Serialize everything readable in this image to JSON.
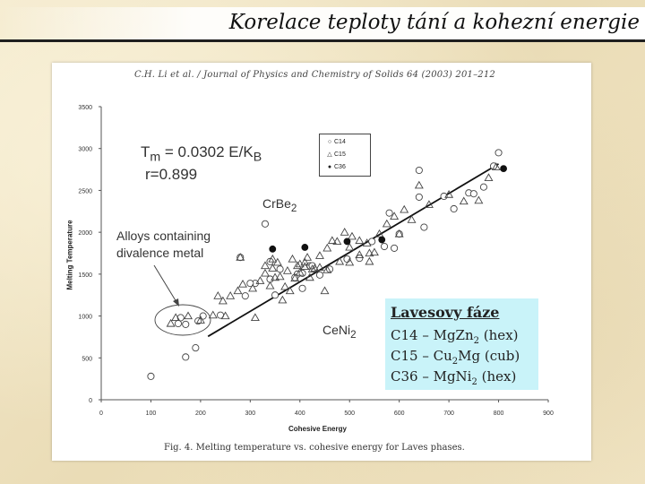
{
  "slide": {
    "title": "Korelace teploty tání a kohezní energie"
  },
  "figure": {
    "header": "C.H. Li et al. / Journal of Physics and Chemistry of Solids 64 (2003) 201–212",
    "caption": "Fig. 4. Melting temperature vs. cohesive energy for Laves phases.",
    "formula_line1": "T",
    "formula_sub": "m",
    "formula_rest": " = 0.0302 E/K",
    "formula_sub2": "B",
    "formula_line2": "r=0.899",
    "annotation_crbe2": "CrBe",
    "annotation_crbe2_sub": "2",
    "annotation_ceni2": "CeNi",
    "annotation_ceni2_sub": "2",
    "annotation_alloys_line1": "Alloys containing",
    "annotation_alloys_line2": "divalence metal",
    "legend": [
      {
        "label": "C14",
        "symbol": "○"
      },
      {
        "label": "C15",
        "symbol": "△"
      },
      {
        "label": "C36",
        "symbol": "●"
      }
    ]
  },
  "laves_box": {
    "heading": "Lavesovy fáze",
    "rows": [
      {
        "prefix": "C14 – MgZn",
        "sub": "2",
        "suffix": " (hex)"
      },
      {
        "prefix": "C15 – Cu",
        "sub": "2",
        "suffix": "Mg (cub)"
      },
      {
        "prefix": "C36 – MgNi",
        "sub": "2",
        "suffix": " (hex)"
      }
    ]
  },
  "chart_data": {
    "type": "scatter",
    "xlabel": "Cohesive Energy",
    "ylabel": "Melting Temperature",
    "xlim": [
      0,
      900
    ],
    "ylim": [
      0,
      3500
    ],
    "xticks": [
      0,
      100,
      200,
      300,
      400,
      500,
      600,
      700,
      800,
      900
    ],
    "yticks": [
      0,
      500,
      1000,
      1500,
      2000,
      2500,
      3000,
      3500
    ],
    "fit_line": {
      "slope": 3.52,
      "intercept": 0,
      "x_range": [
        215,
        800
      ]
    },
    "series": [
      {
        "name": "C14",
        "marker": "open-circle",
        "points": [
          [
            100,
            280
          ],
          [
            170,
            510
          ],
          [
            190,
            620
          ],
          [
            170,
            900
          ],
          [
            160,
            980
          ],
          [
            195,
            940
          ],
          [
            205,
            1000
          ],
          [
            240,
            1010
          ],
          [
            290,
            1240
          ],
          [
            310,
            1390
          ],
          [
            340,
            1440
          ],
          [
            360,
            1560
          ],
          [
            395,
            1500
          ],
          [
            405,
            1510
          ],
          [
            420,
            1600
          ],
          [
            440,
            1490
          ],
          [
            460,
            1560
          ],
          [
            495,
            1680
          ],
          [
            520,
            1690
          ],
          [
            570,
            1830
          ],
          [
            590,
            1810
          ],
          [
            600,
            1980
          ],
          [
            650,
            2060
          ],
          [
            690,
            2430
          ],
          [
            740,
            2470
          ],
          [
            790,
            2790
          ],
          [
            770,
            2540
          ],
          [
            710,
            2280
          ],
          [
            640,
            2420
          ],
          [
            580,
            2230
          ],
          [
            330,
            2100
          ],
          [
            300,
            1390
          ],
          [
            350,
            1250
          ],
          [
            405,
            1330
          ],
          [
            425,
            1600
          ],
          [
            390,
            1460
          ],
          [
            340,
            1650
          ],
          [
            640,
            2740
          ],
          [
            750,
            2460
          ],
          [
            800,
            2950
          ],
          [
            545,
            1890
          ],
          [
            280,
            1700
          ],
          [
            155,
            910
          ]
        ]
      },
      {
        "name": "C15",
        "marker": "open-triangle",
        "points": [
          [
            140,
            910
          ],
          [
            150,
            980
          ],
          [
            175,
            1000
          ],
          [
            225,
            1010
          ],
          [
            245,
            1180
          ],
          [
            260,
            1240
          ],
          [
            275,
            1300
          ],
          [
            285,
            1380
          ],
          [
            305,
            1330
          ],
          [
            320,
            1420
          ],
          [
            330,
            1510
          ],
          [
            345,
            1570
          ],
          [
            355,
            1640
          ],
          [
            360,
            1470
          ],
          [
            370,
            1350
          ],
          [
            375,
            1540
          ],
          [
            385,
            1680
          ],
          [
            395,
            1600
          ],
          [
            400,
            1520
          ],
          [
            410,
            1640
          ],
          [
            415,
            1700
          ],
          [
            430,
            1570
          ],
          [
            440,
            1720
          ],
          [
            455,
            1810
          ],
          [
            465,
            1900
          ],
          [
            475,
            1890
          ],
          [
            490,
            2000
          ],
          [
            505,
            1950
          ],
          [
            520,
            1900
          ],
          [
            535,
            1870
          ],
          [
            540,
            1750
          ],
          [
            560,
            1980
          ],
          [
            575,
            2100
          ],
          [
            590,
            2190
          ],
          [
            610,
            2270
          ],
          [
            625,
            2150
          ],
          [
            640,
            2560
          ],
          [
            660,
            2330
          ],
          [
            700,
            2450
          ],
          [
            730,
            2370
          ],
          [
            760,
            2380
          ],
          [
            780,
            2650
          ],
          [
            795,
            2780
          ],
          [
            410,
            1590
          ],
          [
            350,
            1460
          ],
          [
            420,
            1460
          ],
          [
            450,
            1300
          ],
          [
            340,
            1360
          ],
          [
            390,
            1450
          ],
          [
            310,
            980
          ],
          [
            200,
            950
          ],
          [
            280,
            1700
          ],
          [
            345,
            1680
          ],
          [
            400,
            1620
          ],
          [
            455,
            1550
          ],
          [
            500,
            1820
          ],
          [
            550,
            1760
          ],
          [
            600,
            1980
          ],
          [
            330,
            1600
          ],
          [
            425,
            1560
          ],
          [
            480,
            1650
          ],
          [
            500,
            1640
          ],
          [
            380,
            1300
          ],
          [
            250,
            1000
          ],
          [
            235,
            1240
          ],
          [
            365,
            1190
          ],
          [
            440,
            1580
          ],
          [
            520,
            1730
          ],
          [
            540,
            1650
          ]
        ]
      },
      {
        "name": "C36",
        "marker": "filled-circle",
        "points": [
          [
            345,
            1800
          ],
          [
            410,
            1820
          ],
          [
            495,
            1890
          ],
          [
            565,
            1910
          ],
          [
            810,
            2760
          ]
        ]
      }
    ]
  }
}
